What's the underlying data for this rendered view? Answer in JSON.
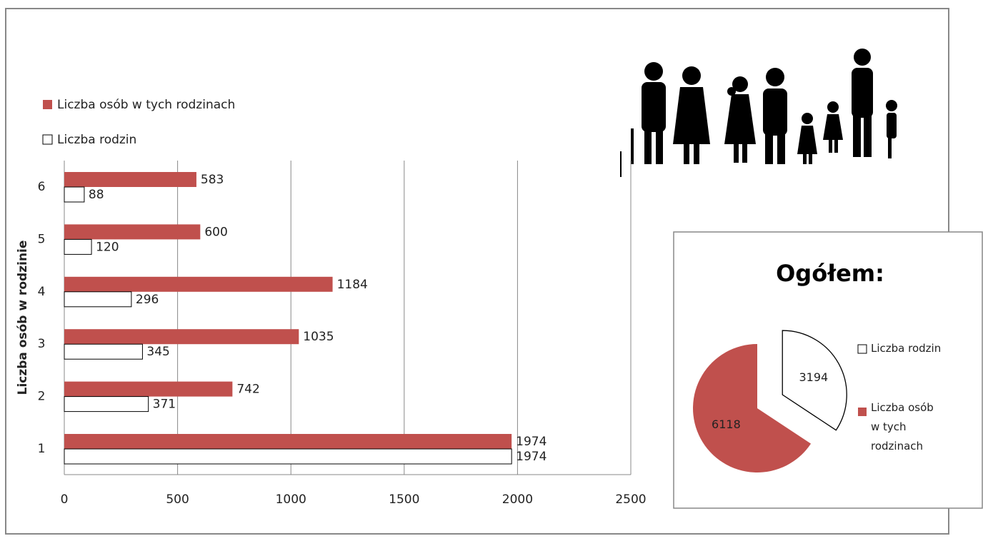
{
  "chart_data": [
    {
      "type": "hbar",
      "y_label": "Liczba osób w rodzinie",
      "categories": [
        "1",
        "2",
        "3",
        "4",
        "5",
        "6"
      ],
      "series": [
        {
          "name": "Liczba osób w tych rodzinach",
          "color": "#c0504d",
          "values": [
            1974,
            742,
            1035,
            1184,
            600,
            583
          ]
        },
        {
          "name": "Liczba rodzin",
          "color": "#ffffff",
          "values": [
            1974,
            371,
            345,
            296,
            120,
            88
          ]
        }
      ],
      "xlim": [
        0,
        2500
      ],
      "xticks": [
        0,
        500,
        1000,
        1500,
        2000,
        2500
      ],
      "grid": true
    },
    {
      "type": "pie",
      "title": "Ogółem:",
      "categories": [
        "Liczba rodzin",
        "Liczba osób w tych rodzinach"
      ],
      "values": [
        3194,
        6118
      ],
      "colors": [
        "#ffffff",
        "#c0504d"
      ]
    }
  ]
}
